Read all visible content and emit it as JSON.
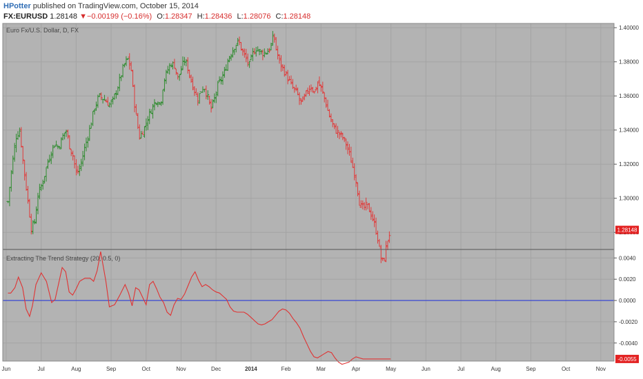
{
  "header": {
    "author": "HPotter",
    "published_text": "published on TradingView.com, October 15, 2014",
    "symbol": "FX:EURUSD",
    "last": "1.28148",
    "change_arrow": "▼",
    "change": "−0.00199 (−0.16%)",
    "o_label": "O:",
    "o_value": "1.28347",
    "h_label": "H:",
    "h_value": "1.28436",
    "l_label": "L:",
    "l_value": "1.28076",
    "c_label": "C:",
    "c_value": "1.28148"
  },
  "colors": {
    "pane_bg": "#b3b3b3",
    "up": "#2e8b2e",
    "down": "#e03a3a",
    "indicator_line": "#e03232",
    "zero_line": "#2b3bd6",
    "price_tag": "#e32222"
  },
  "chart_data": [
    {
      "type": "ohlc",
      "title": "Euro Fx/U.S. Dollar, D, FX",
      "ylim": [
        1.27,
        1.4025
      ],
      "y_ticks": [
        1.28,
        1.3,
        1.32,
        1.34,
        1.36,
        1.38,
        1.4
      ],
      "y_tick_labels": [
        "1.28000",
        "1.30000",
        "1.32000",
        "1.34000",
        "1.36000",
        "1.38000",
        "1.40000"
      ],
      "last_price_label": "1.28148",
      "last_price": 1.28148,
      "x_tick_labels": [
        "Jun",
        "Jul",
        "Aug",
        "Sep",
        "Oct",
        "Nov",
        "Dec",
        "2014",
        "Feb",
        "Mar",
        "Apr",
        "May",
        "Jun",
        "Jul",
        "Aug",
        "Sep",
        "Oct",
        "Nov"
      ],
      "x_tick_bold": "2014",
      "grid": true,
      "series_close": [
        {
          "x": 0.0,
          "y": 1.298
        },
        {
          "x": 0.11,
          "y": 1.318
        },
        {
          "x": 0.23,
          "y": 1.336
        },
        {
          "x": 0.34,
          "y": 1.34
        },
        {
          "x": 0.45,
          "y": 1.318
        },
        {
          "x": 0.55,
          "y": 1.302
        },
        {
          "x": 0.67,
          "y": 1.282
        },
        {
          "x": 0.76,
          "y": 1.286
        },
        {
          "x": 0.86,
          "y": 1.302
        },
        {
          "x": 1.0,
          "y": 1.31
        },
        {
          "x": 1.15,
          "y": 1.322
        },
        {
          "x": 1.32,
          "y": 1.332
        },
        {
          "x": 1.45,
          "y": 1.33
        },
        {
          "x": 1.56,
          "y": 1.336
        },
        {
          "x": 1.66,
          "y": 1.34
        },
        {
          "x": 1.77,
          "y": 1.33
        },
        {
          "x": 1.86,
          "y": 1.325
        },
        {
          "x": 1.96,
          "y": 1.314
        },
        {
          "x": 2.06,
          "y": 1.318
        },
        {
          "x": 2.2,
          "y": 1.33
        },
        {
          "x": 2.33,
          "y": 1.34
        },
        {
          "x": 2.46,
          "y": 1.352
        },
        {
          "x": 2.6,
          "y": 1.36
        },
        {
          "x": 2.75,
          "y": 1.358
        },
        {
          "x": 2.9,
          "y": 1.355
        },
        {
          "x": 3.0,
          "y": 1.357
        },
        {
          "x": 3.15,
          "y": 1.366
        },
        {
          "x": 3.3,
          "y": 1.377
        },
        {
          "x": 3.42,
          "y": 1.382
        },
        {
          "x": 3.52,
          "y": 1.376
        },
        {
          "x": 3.6,
          "y": 1.358
        },
        {
          "x": 3.68,
          "y": 1.346
        },
        {
          "x": 3.76,
          "y": 1.336
        },
        {
          "x": 3.88,
          "y": 1.34
        },
        {
          "x": 4.0,
          "y": 1.347
        },
        {
          "x": 4.12,
          "y": 1.353
        },
        {
          "x": 4.25,
          "y": 1.358
        },
        {
          "x": 4.36,
          "y": 1.355
        },
        {
          "x": 4.45,
          "y": 1.368
        },
        {
          "x": 4.56,
          "y": 1.375
        },
        {
          "x": 4.66,
          "y": 1.379
        },
        {
          "x": 4.76,
          "y": 1.378
        },
        {
          "x": 4.86,
          "y": 1.37
        },
        {
          "x": 4.96,
          "y": 1.376
        },
        {
          "x": 5.04,
          "y": 1.381
        },
        {
          "x": 5.12,
          "y": 1.378
        },
        {
          "x": 5.22,
          "y": 1.37
        },
        {
          "x": 5.32,
          "y": 1.364
        },
        {
          "x": 5.42,
          "y": 1.358
        },
        {
          "x": 5.5,
          "y": 1.362
        },
        {
          "x": 5.6,
          "y": 1.366
        },
        {
          "x": 5.7,
          "y": 1.36
        },
        {
          "x": 5.8,
          "y": 1.352
        },
        {
          "x": 5.9,
          "y": 1.358
        },
        {
          "x": 6.0,
          "y": 1.366
        },
        {
          "x": 6.1,
          "y": 1.37
        },
        {
          "x": 6.2,
          "y": 1.374
        },
        {
          "x": 6.3,
          "y": 1.382
        },
        {
          "x": 6.4,
          "y": 1.386
        },
        {
          "x": 6.5,
          "y": 1.39
        },
        {
          "x": 6.6,
          "y": 1.392
        },
        {
          "x": 6.7,
          "y": 1.386
        },
        {
          "x": 6.8,
          "y": 1.382
        },
        {
          "x": 6.9,
          "y": 1.378
        },
        {
          "x": 7.0,
          "y": 1.385
        },
        {
          "x": 7.1,
          "y": 1.388
        },
        {
          "x": 7.2,
          "y": 1.386
        },
        {
          "x": 7.3,
          "y": 1.385
        },
        {
          "x": 7.4,
          "y": 1.386
        },
        {
          "x": 7.5,
          "y": 1.388
        },
        {
          "x": 7.6,
          "y": 1.396
        },
        {
          "x": 7.66,
          "y": 1.388
        },
        {
          "x": 7.76,
          "y": 1.38
        },
        {
          "x": 7.86,
          "y": 1.376
        },
        {
          "x": 7.96,
          "y": 1.372
        },
        {
          "x": 8.06,
          "y": 1.368
        },
        {
          "x": 8.16,
          "y": 1.364
        },
        {
          "x": 8.26,
          "y": 1.362
        },
        {
          "x": 8.36,
          "y": 1.356
        },
        {
          "x": 8.46,
          "y": 1.358
        },
        {
          "x": 8.56,
          "y": 1.363
        },
        {
          "x": 8.66,
          "y": 1.366
        },
        {
          "x": 8.76,
          "y": 1.362
        },
        {
          "x": 8.86,
          "y": 1.368
        },
        {
          "x": 8.96,
          "y": 1.364
        },
        {
          "x": 9.06,
          "y": 1.358
        },
        {
          "x": 9.16,
          "y": 1.35
        },
        {
          "x": 9.26,
          "y": 1.344
        },
        {
          "x": 9.36,
          "y": 1.34
        },
        {
          "x": 9.46,
          "y": 1.338
        },
        {
          "x": 9.56,
          "y": 1.336
        },
        {
          "x": 9.66,
          "y": 1.332
        },
        {
          "x": 9.76,
          "y": 1.326
        },
        {
          "x": 9.86,
          "y": 1.318
        },
        {
          "x": 9.96,
          "y": 1.31
        },
        {
          "x": 10.06,
          "y": 1.296
        },
        {
          "x": 10.16,
          "y": 1.294
        },
        {
          "x": 10.26,
          "y": 1.296
        },
        {
          "x": 10.36,
          "y": 1.292
        },
        {
          "x": 10.46,
          "y": 1.286
        },
        {
          "x": 10.56,
          "y": 1.278
        },
        {
          "x": 10.66,
          "y": 1.265
        },
        {
          "x": 10.74,
          "y": 1.262
        },
        {
          "x": 10.8,
          "y": 1.27
        },
        {
          "x": 10.86,
          "y": 1.276
        },
        {
          "x": 10.94,
          "y": 1.28148
        }
      ]
    },
    {
      "type": "line",
      "title": "Extracting The Trend Strategy (20, 0.5, 0)",
      "ylim": [
        -0.0057,
        0.0048
      ],
      "y_ticks": [
        0.004,
        0.002,
        0.0,
        -0.002,
        -0.004
      ],
      "y_tick_labels": [
        "0.0040",
        "0.0020",
        "0.0000",
        "-0.0020",
        "-0.0040"
      ],
      "last_value_label": "-0.0055",
      "last_value": -0.0055,
      "zero_line": 0,
      "x": [
        0.0,
        0.08,
        0.2,
        0.3,
        0.42,
        0.52,
        0.62,
        0.7,
        0.8,
        0.95,
        1.1,
        1.25,
        1.35,
        1.45,
        1.55,
        1.65,
        1.75,
        1.85,
        1.95,
        2.05,
        2.2,
        2.35,
        2.45,
        2.55,
        2.65,
        2.8,
        2.9,
        3.05,
        3.2,
        3.35,
        3.45,
        3.55,
        3.65,
        3.75,
        3.85,
        3.95,
        4.05,
        4.15,
        4.25,
        4.35,
        4.45,
        4.55,
        4.65,
        4.75,
        4.85,
        4.95,
        5.05,
        5.15,
        5.25,
        5.35,
        5.45,
        5.55,
        5.65,
        5.75,
        5.85,
        5.95,
        6.05,
        6.15,
        6.25,
        6.35,
        6.45,
        6.55,
        6.65,
        6.75,
        6.85,
        6.95,
        7.05,
        7.15,
        7.25,
        7.35,
        7.45,
        7.55,
        7.65,
        7.75,
        7.85,
        7.95,
        8.05,
        8.15,
        8.25,
        8.35,
        8.45,
        8.55,
        8.65,
        8.75,
        8.85,
        8.95,
        9.05,
        9.15,
        9.25,
        9.35,
        9.45,
        9.55,
        9.65,
        9.75,
        9.85,
        9.95,
        10.05,
        10.15,
        10.25,
        10.35,
        10.45,
        10.55,
        10.65,
        10.75,
        10.85,
        10.94
      ],
      "y": [
        0.0007,
        0.0007,
        0.0012,
        0.0022,
        0.0012,
        -0.0008,
        -0.0015,
        -0.0005,
        0.0015,
        0.0026,
        0.0018,
        -0.0002,
        0.0001,
        0.0016,
        0.0031,
        0.0027,
        0.0008,
        0.0005,
        0.0011,
        0.0018,
        0.0021,
        0.0021,
        0.0018,
        0.0028,
        0.0046,
        0.0018,
        -0.0006,
        -0.0004,
        0.0005,
        0.0015,
        0.0007,
        -0.0005,
        0.0012,
        0.001,
        0.0003,
        -0.0004,
        0.0015,
        0.0018,
        0.0011,
        0.0003,
        -0.0002,
        -0.0011,
        -0.0014,
        -0.0004,
        0.0002,
        0.0001,
        0.0006,
        0.0014,
        0.0022,
        0.0027,
        0.0019,
        0.0013,
        0.0015,
        0.0013,
        0.001,
        0.0008,
        0.0007,
        0.0004,
        0.0001,
        -0.0006,
        -0.001,
        -0.0011,
        -0.0011,
        -0.0011,
        -0.0013,
        -0.0016,
        -0.0019,
        -0.0022,
        -0.0023,
        -0.0022,
        -0.002,
        -0.0018,
        -0.0014,
        -0.001,
        -0.0008,
        -0.0009,
        -0.0012,
        -0.0017,
        -0.0021,
        -0.0026,
        -0.0034,
        -0.0041,
        -0.0048,
        -0.0053,
        -0.0054,
        -0.0052,
        -0.005,
        -0.0048,
        -0.0049,
        -0.0054,
        -0.0058,
        -0.006,
        -0.0059,
        -0.0058,
        -0.0055,
        -0.0053,
        -0.0054,
        -0.0055,
        -0.0055,
        -0.0055,
        -0.0055,
        -0.0055,
        -0.0055,
        -0.0055,
        -0.0055,
        -0.0055
      ]
    }
  ]
}
